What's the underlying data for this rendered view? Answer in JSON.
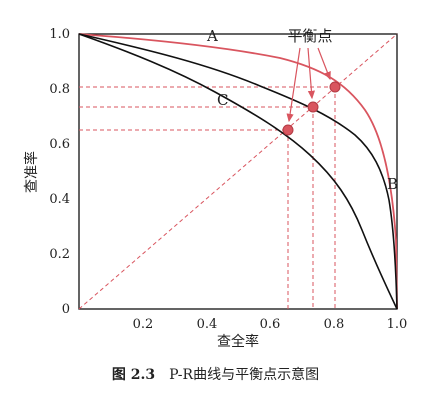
{
  "diagram": {
    "x_axis": {
      "label": "查全率",
      "ticks": [
        "0.2",
        "0.4",
        "0.6",
        "0.8",
        "1.0"
      ]
    },
    "y_axis": {
      "label": "查准率",
      "ticks": [
        "0",
        "0.2",
        "0.4",
        "0.6",
        "0.8",
        "1.0"
      ]
    },
    "curve_labels": {
      "a": "A",
      "b": "B",
      "c": "C"
    },
    "bep_label": "平衡点",
    "colors": {
      "red": "#d9555f",
      "black": "#111111",
      "dashed": "#d9555f"
    }
  },
  "caption": {
    "figure_label": "图 2.3",
    "text": "P-R曲线与平衡点示意图"
  }
}
